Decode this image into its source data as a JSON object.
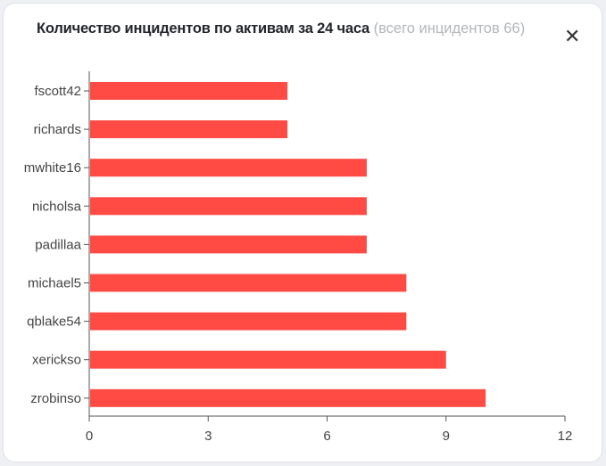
{
  "card": {
    "title": "Количество инцидентов по активам за 24 часа",
    "subtitle": "(всего инцидентов 66)",
    "close_icon": "close-icon"
  },
  "chart_data": {
    "type": "bar",
    "orientation": "horizontal",
    "title": "Количество инцидентов по активам за 24 часа",
    "categories": [
      "fscott42",
      "richards",
      "mwhite16",
      "nicholsa",
      "padillaa",
      "michael5",
      "qblake54",
      "xerickso",
      "zrobinso"
    ],
    "values": [
      5,
      5,
      7,
      7,
      7,
      8,
      8,
      9,
      10
    ],
    "xlim": [
      0,
      12
    ],
    "xticks": [
      "0",
      "3",
      "6",
      "9",
      "12"
    ],
    "xlabel": "",
    "ylabel": "",
    "grid": false,
    "bar_color": "#ff4b44"
  }
}
